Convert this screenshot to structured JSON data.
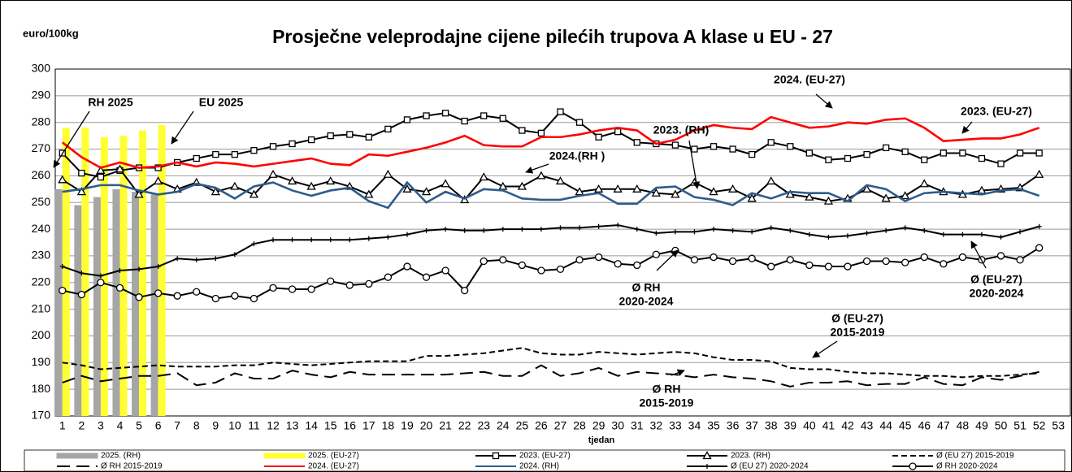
{
  "chart_data": {
    "type": "bar-line",
    "title": "Prosječne veleprodajne cijene pilećih trupova A klase u EU - 27",
    "y_label": "euro/100kg",
    "x_label": "tjedan",
    "categories": [
      "1",
      "2",
      "3",
      "4",
      "5",
      "6",
      "7",
      "8",
      "9",
      "10",
      "11",
      "12",
      "13",
      "14",
      "15",
      "16",
      "17",
      "18",
      "19",
      "20",
      "21",
      "22",
      "23",
      "24",
      "25",
      "26",
      "27",
      "28",
      "29",
      "30",
      "31",
      "32",
      "33",
      "34",
      "35",
      "36",
      "37",
      "38",
      "39",
      "40",
      "41",
      "42",
      "43",
      "44",
      "45",
      "46",
      "47",
      "48",
      "49",
      "50",
      "51",
      "52",
      "53"
    ],
    "ylim": [
      170,
      300
    ],
    "yticks": [
      170,
      180,
      190,
      200,
      210,
      220,
      230,
      240,
      250,
      260,
      270,
      280,
      290,
      300
    ],
    "grid": true,
    "series": [
      {
        "name": "2025. (RH)",
        "kind": "bar",
        "color": "#a6a6a6",
        "values": [
          255,
          249,
          252,
          255,
          254,
          253,
          null,
          null,
          null,
          null,
          null,
          null,
          null,
          null,
          null,
          null,
          null,
          null,
          null,
          null,
          null,
          null,
          null,
          null,
          null,
          null,
          null,
          null,
          null,
          null,
          null,
          null,
          null,
          null,
          null,
          null,
          null,
          null,
          null,
          null,
          null,
          null,
          null,
          null,
          null,
          null,
          null,
          null,
          null,
          null,
          null,
          null,
          null
        ]
      },
      {
        "name": "2025. (EU-27)",
        "kind": "bar",
        "color": "#ffff33",
        "values": [
          278,
          278,
          274.5,
          275,
          277,
          279,
          null,
          null,
          null,
          null,
          null,
          null,
          null,
          null,
          null,
          null,
          null,
          null,
          null,
          null,
          null,
          null,
          null,
          null,
          null,
          null,
          null,
          null,
          null,
          null,
          null,
          null,
          null,
          null,
          null,
          null,
          null,
          null,
          null,
          null,
          null,
          null,
          null,
          null,
          null,
          null,
          null,
          null,
          null,
          null,
          null,
          null,
          null
        ]
      },
      {
        "name": "2023. (EU-27)",
        "kind": "line",
        "color": "#000000",
        "marker": "square",
        "dash": "solid",
        "values": [
          268.5,
          261,
          259.5,
          262,
          263,
          263,
          265,
          266.5,
          268,
          268,
          269.5,
          271,
          272,
          273.5,
          275,
          275.5,
          274.5,
          277.5,
          281,
          282.5,
          283.5,
          280.5,
          282.5,
          281.5,
          277,
          276,
          284,
          280,
          274.5,
          276.5,
          272.5,
          272,
          271.5,
          270,
          271,
          270,
          268,
          272.5,
          271,
          268.5,
          266,
          266.5,
          268,
          270.5,
          269,
          266,
          268.5,
          268.5,
          266.5,
          264.5,
          268.5,
          268.5,
          null
        ]
      },
      {
        "name": "2023. (RH)",
        "kind": "line",
        "color": "#000000",
        "marker": "triangle",
        "dash": "solid",
        "values": [
          258.5,
          254,
          262,
          262.5,
          253,
          258,
          255,
          257.5,
          254,
          256,
          253,
          260.5,
          258,
          256,
          258,
          256,
          253,
          260.5,
          255,
          254,
          257,
          251,
          259.5,
          256,
          256,
          260,
          258,
          254,
          255,
          255,
          255,
          253.5,
          253,
          257.5,
          254,
          255,
          251.5,
          258,
          253,
          252,
          250.5,
          251.5,
          255,
          251.5,
          252.5,
          257,
          254,
          253,
          254.5,
          255,
          255.5,
          260.5,
          null
        ]
      },
      {
        "name": "Ø (EU 27) 2015-2019",
        "kind": "line",
        "color": "#000000",
        "marker": "none",
        "dash": "short",
        "values": [
          190,
          189,
          187.5,
          188,
          188.5,
          189,
          188.5,
          188.5,
          188.5,
          189,
          189,
          190,
          189.5,
          189,
          189.5,
          190,
          190.5,
          190.5,
          190.5,
          192.5,
          192.5,
          193,
          193.5,
          194.5,
          195.5,
          193.5,
          193,
          193,
          194,
          193.5,
          193,
          193.5,
          194,
          193.5,
          192,
          191,
          191,
          190.5,
          188,
          187.5,
          187.5,
          186.5,
          186,
          186,
          185.5,
          185,
          185,
          184.5,
          185,
          185,
          185.5,
          186,
          null
        ]
      },
      {
        "name": "Ø RH 2015-2019",
        "kind": "line",
        "color": "#000000",
        "marker": "none",
        "dash": "long",
        "values": [
          182.5,
          185,
          183,
          184,
          185,
          185,
          186,
          181.5,
          182.5,
          186,
          184,
          184,
          187,
          185.5,
          184.5,
          186.5,
          185.5,
          185.5,
          185.5,
          185.5,
          185.5,
          186,
          186.5,
          185,
          185,
          189,
          185,
          186,
          188,
          185,
          186.5,
          186,
          185.5,
          184.5,
          185.5,
          184.5,
          184,
          183,
          181,
          182.5,
          182.5,
          183,
          181.5,
          182,
          182,
          184.5,
          182,
          181.5,
          184.5,
          183.5,
          185,
          186.5,
          null
        ]
      },
      {
        "name": "2024. (EU-27)",
        "kind": "line",
        "color": "#ff0000",
        "marker": "none",
        "dash": "solid",
        "values": [
          272.5,
          267,
          263,
          265,
          263,
          263.5,
          265,
          263.5,
          265,
          264.5,
          263.5,
          264.5,
          265.5,
          266.5,
          264.5,
          264,
          268,
          267.5,
          269,
          270.5,
          272.5,
          275,
          271.5,
          271,
          271,
          274.5,
          274.5,
          275.5,
          277,
          278,
          277,
          272,
          273.5,
          277,
          279,
          278,
          277.5,
          282,
          280,
          278,
          278.5,
          280,
          279.5,
          281,
          281.5,
          278,
          273,
          273.5,
          274,
          274,
          275.5,
          278,
          null
        ]
      },
      {
        "name": "2024. (RH)",
        "kind": "line",
        "color": "#2e5c8a",
        "marker": "none",
        "dash": "solid",
        "values": [
          254,
          255,
          256.5,
          256.5,
          254.5,
          253,
          254,
          257,
          255.5,
          251.5,
          256,
          257.5,
          254.5,
          252.5,
          254.5,
          255.5,
          250.5,
          248,
          257.5,
          250,
          254,
          251.5,
          255,
          254.5,
          251.5,
          251,
          251,
          252.5,
          253.5,
          249.5,
          249.5,
          255.5,
          256,
          252,
          251,
          249,
          253.5,
          251.5,
          254,
          253.5,
          253.5,
          250.5,
          256.5,
          255,
          250.5,
          253.5,
          254,
          253.5,
          253,
          254.5,
          255,
          252.5,
          null
        ]
      },
      {
        "name": "Ø (EU 27) 2020-2024",
        "kind": "line",
        "color": "#000000",
        "marker": "plus",
        "dash": "solid",
        "values": [
          226,
          223.5,
          222.5,
          224.5,
          225,
          226,
          229,
          228.5,
          229,
          230.5,
          234.5,
          236,
          236,
          236,
          236,
          236,
          236.5,
          237,
          238,
          239.5,
          240,
          239.5,
          239.5,
          240,
          240,
          240,
          240.5,
          240.5,
          241,
          241.5,
          240,
          238.5,
          239,
          239,
          240,
          239.5,
          239,
          240.5,
          239.5,
          238,
          237,
          237.5,
          238.5,
          239.5,
          240.5,
          239.5,
          238,
          238,
          238,
          237,
          239,
          241,
          null
        ]
      },
      {
        "name": "Ø RH 2020-2024",
        "kind": "line",
        "color": "#000000",
        "marker": "circle",
        "dash": "solid",
        "values": [
          217,
          215.5,
          220,
          218,
          214.5,
          216,
          215,
          216.5,
          214,
          215,
          214,
          218,
          217.5,
          217.5,
          220.5,
          219,
          219.5,
          222,
          226,
          222,
          224.5,
          217,
          228,
          228.5,
          226.5,
          224.5,
          225,
          228.5,
          229.5,
          227,
          226.5,
          230.5,
          232,
          228.5,
          229.5,
          228,
          229,
          226,
          228.5,
          226.5,
          226,
          226,
          228,
          228,
          227.5,
          229.5,
          227,
          229.5,
          228.5,
          230,
          228.5,
          233,
          null
        ]
      }
    ],
    "annotations": [
      {
        "lines": [
          "RH 2025"
        ]
      },
      {
        "lines": [
          "EU 2025"
        ]
      },
      {
        "lines": [
          "2024. (EU-27)"
        ]
      },
      {
        "lines": [
          "2023. (EU-27)"
        ]
      },
      {
        "lines": [
          "2023. (RH)"
        ]
      },
      {
        "lines": [
          "2024.(RH )"
        ]
      },
      {
        "lines": [
          "Ø RH",
          "2020-2024"
        ]
      },
      {
        "lines": [
          "Ø (EU-27)",
          "2020-2024"
        ]
      },
      {
        "lines": [
          "Ø (EU-27)",
          "2015-2019"
        ]
      },
      {
        "lines": [
          "Ø RH",
          "2015-2019"
        ]
      }
    ]
  }
}
